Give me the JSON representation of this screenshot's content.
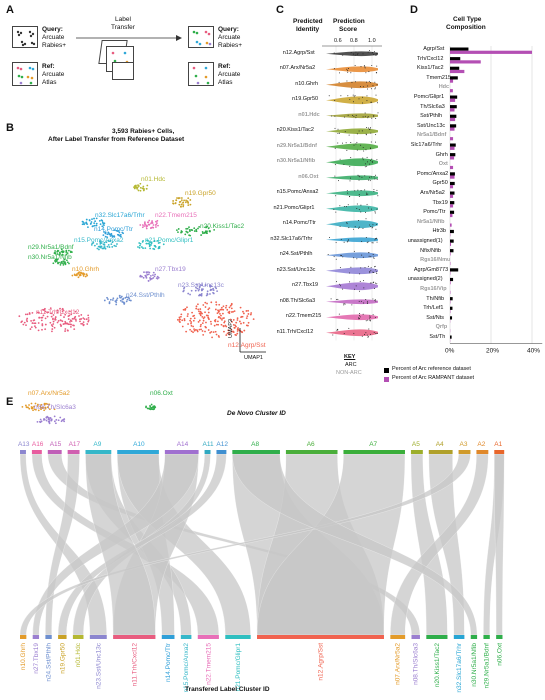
{
  "panels": {
    "A": "A",
    "B": "B",
    "C": "C",
    "D": "D",
    "E": "E"
  },
  "panelA": {
    "query_label": "Query:",
    "query_text": [
      "Arcuate",
      "Rabies+"
    ],
    "ref_label": "Ref:",
    "ref_text": [
      "Arcuate",
      "Atlas"
    ],
    "transfer_label": [
      "Label",
      "Transfer"
    ]
  },
  "panelB": {
    "title_line1": "3,593 Rabies+ Cells,",
    "title_line2": "After Label Transfer from Reference Dataset",
    "umap1": "UMAP1",
    "umap2": "UMAP2",
    "clusters": [
      {
        "label": "n01.Hdc",
        "color": "#b5b832"
      },
      {
        "label": "n19.Gpr50",
        "color": "#c9a227"
      },
      {
        "label": "n32.Slc17a6/Trhr",
        "color": "#27a5d4"
      },
      {
        "label": "n22.Tmem215",
        "color": "#e86fb8"
      },
      {
        "label": "n14.Pomc/Ttr",
        "color": "#2f9fd8"
      },
      {
        "label": "n20.Kiss1/Tac2",
        "color": "#2fae4a"
      },
      {
        "label": "n29.Nr5a1/Bdnf",
        "color": "#2fb04a"
      },
      {
        "label": "n15.Pomc/Anxa2",
        "color": "#35b7c9"
      },
      {
        "label": "n21.Pomc/Glipr1",
        "color": "#2fbfc0"
      },
      {
        "label": "n30.Nr5a1/Nfib",
        "color": "#2fae4a"
      },
      {
        "label": "n10.Ghrh",
        "color": "#e39b2a"
      },
      {
        "label": "n27.Tbx19",
        "color": "#9b7fd0"
      },
      {
        "label": "n23.Sst/Unc13c",
        "color": "#8c86cf"
      },
      {
        "label": "n24.Sst/Pthlh",
        "color": "#6e8fcf"
      },
      {
        "label": "n11.Trh/Cxcl12",
        "color": "#e85c7f"
      },
      {
        "label": "n12.Agrp/Sst",
        "color": "#f0624f"
      },
      {
        "label": "n07.Arx/Nr5a2",
        "color": "#e39b2a"
      },
      {
        "label": "n06.Oxt",
        "color": "#2fae4a"
      },
      {
        "label": "n08.Th/Slc6a3",
        "color": "#9b7fd0"
      }
    ]
  },
  "panelC": {
    "header_identity": [
      "Predicted",
      "Identity"
    ],
    "header_score": [
      "Prediction",
      "Score"
    ],
    "axis_ticks": [
      "0.6",
      "0.8",
      "1.0"
    ],
    "key_title": "KEY",
    "key_arc": "ARC",
    "key_nonarc": "NON-ARC",
    "rows": [
      {
        "label": "n12.Agrp/Sst",
        "arc": true,
        "color": "#333333"
      },
      {
        "label": "n07.Arx/Nr5a2",
        "arc": true,
        "color": "#e8862a"
      },
      {
        "label": "n10.Ghrh",
        "arc": true,
        "color": "#d07a1e"
      },
      {
        "label": "n19.Gpr50",
        "arc": true,
        "color": "#c9a227"
      },
      {
        "label": "n01.Hdc",
        "arc": false,
        "color": "#9c9c2b"
      },
      {
        "label": "n20.Kiss1/Tac2",
        "arc": true,
        "color": "#8aa52a"
      },
      {
        "label": "n29.Nr5a1/Bdnf",
        "arc": false,
        "color": "#4aa83a"
      },
      {
        "label": "n30.Nr5a1/Nfib",
        "arc": false,
        "color": "#2fa64a"
      },
      {
        "label": "n06.Oxt",
        "arc": false,
        "color": "#2fa860"
      },
      {
        "label": "n15.Pomc/Anxa2",
        "arc": true,
        "color": "#2fae7a"
      },
      {
        "label": "n21.Pomc/Glipr1",
        "arc": true,
        "color": "#2fb0a0"
      },
      {
        "label": "n14.Pomc/Ttr",
        "arc": true,
        "color": "#2fa8c0"
      },
      {
        "label": "n32.Slc17a6/Trhr",
        "arc": true,
        "color": "#2f9fd0"
      },
      {
        "label": "n24.Sst/Pthlh",
        "arc": true,
        "color": "#5f8fd6"
      },
      {
        "label": "n23.Sst/Unc13c",
        "arc": true,
        "color": "#8a7fd6"
      },
      {
        "label": "n27.Tbx19",
        "arc": true,
        "color": "#a070d0"
      },
      {
        "label": "n08.Th/Slc6a3",
        "arc": true,
        "color": "#c060c0"
      },
      {
        "label": "n22.Tmem215",
        "arc": true,
        "color": "#e060a8"
      },
      {
        "label": "n11.Trh/Cxcl12",
        "arc": true,
        "color": "#e85c7f"
      }
    ]
  },
  "panelD": {
    "title": [
      "Cell Type",
      "Composition"
    ],
    "legend_ref": "Percent of Arc reference dataset",
    "legend_rampant": "Percent of Arc RAMPANT dataset",
    "ref_color": "#000000",
    "rampant_color": "#b44fb4",
    "axis_ticks": [
      "0%",
      "20%",
      "40%"
    ]
  },
  "chart_data": {
    "type": "bar",
    "title": "Cell Type Composition",
    "xlabel": "",
    "ylabel": "",
    "xlim": [
      0,
      45
    ],
    "categories": [
      "Agrp/Sst",
      "Trh/Cxcl12",
      "Kiss1/Tac2",
      "Tmem215",
      "Hdc",
      "Pomc/Glipr1",
      "Th/Slc6a3",
      "Sst/Pthlh",
      "Sst/Unc13c",
      "Nr5a1/Bdnf",
      "Slc17a6/Trhr",
      "Ghrh",
      "Oxt",
      "Pomc/Anxa2",
      "Gpr50",
      "Arx/Nr5a2",
      "Tbx19",
      "Pomc/Ttr",
      "Nr5a1/Nfib",
      "Htr3b",
      "unassigned(1)",
      "Nfix/Nfib",
      "Rgs16/Nmu",
      "Agrp/Gm8773",
      "unassigned(2)",
      "Rgs16/Vip",
      "Th/Nfib",
      "Trh/Lef1",
      "Sst/Nts",
      "Qrfp",
      "Sst/Th"
    ],
    "category_arc": [
      true,
      true,
      true,
      true,
      false,
      true,
      true,
      true,
      true,
      false,
      true,
      true,
      false,
      true,
      true,
      true,
      true,
      true,
      false,
      true,
      true,
      true,
      false,
      true,
      true,
      false,
      true,
      true,
      true,
      false,
      true
    ],
    "series": [
      {
        "name": "Percent of Arc reference dataset",
        "values": [
          9,
          5,
          4.5,
          3.8,
          0,
          3.5,
          3.3,
          3.1,
          3,
          0,
          2.8,
          2.6,
          0,
          2.4,
          2.3,
          2.2,
          2.1,
          2,
          0,
          1.9,
          1.8,
          1.7,
          0,
          4,
          1.5,
          0,
          1.3,
          1.2,
          1,
          0,
          0.8
        ]
      },
      {
        "name": "Percent of Arc RAMPANT dataset",
        "values": [
          40,
          15,
          7,
          1.5,
          1.4,
          2.5,
          2.2,
          2.5,
          2.2,
          1.5,
          2.2,
          2,
          1.5,
          2.2,
          1.5,
          1.5,
          1.5,
          1.2,
          0.8,
          0.2,
          0.5,
          0.3,
          0.2,
          0.2,
          0.3,
          0.2,
          0.2,
          0.2,
          0.1,
          0.1,
          0.1
        ]
      }
    ]
  },
  "panelE": {
    "top_title": "De Novo Cluster ID",
    "bottom_title": "Transfered Label Cluster ID",
    "top_clusters": [
      {
        "label": "A13",
        "color": "#8c86cf"
      },
      {
        "label": "A16",
        "color": "#e85c9f"
      },
      {
        "label": "A15",
        "color": "#c05fb8"
      },
      {
        "label": "A17",
        "color": "#d05fb0"
      },
      {
        "label": "A9",
        "color": "#35b7c9"
      },
      {
        "label": "A10",
        "color": "#2fa8d8"
      },
      {
        "label": "A14",
        "color": "#a070d0"
      },
      {
        "label": "A11",
        "color": "#2fa8c0"
      },
      {
        "label": "A12",
        "color": "#3f8fd0"
      },
      {
        "label": "A8",
        "color": "#2fae4a"
      },
      {
        "label": "A6",
        "color": "#4aae3a"
      },
      {
        "label": "A7",
        "color": "#3aae3a"
      },
      {
        "label": "A5",
        "color": "#9cae2a"
      },
      {
        "label": "A4",
        "color": "#b0a02a"
      },
      {
        "label": "A3",
        "color": "#d09a2a"
      },
      {
        "label": "A2",
        "color": "#e0882a"
      },
      {
        "label": "A1",
        "color": "#e8662a"
      }
    ],
    "bottom_clusters": [
      {
        "label": "n10.Ghrh",
        "color": "#e39b2a"
      },
      {
        "label": "n27.Tbx19",
        "color": "#9b7fd0"
      },
      {
        "label": "n24.Sst/Pthlh",
        "color": "#6e8fcf"
      },
      {
        "label": "n19.Gpr50",
        "color": "#c9a227"
      },
      {
        "label": "n01.Hdc",
        "color": "#b5b832"
      },
      {
        "label": "n23.Sst/Unc13c",
        "color": "#8c86cf"
      },
      {
        "label": "n11.Trh/Cxcl12",
        "color": "#e85c7f"
      },
      {
        "label": "n14.Pomc/Ttr",
        "color": "#2f9fd8"
      },
      {
        "label": "n15.Pomc/Anxa2",
        "color": "#35b7c9"
      },
      {
        "label": "n22.Tmem215",
        "color": "#e86fb8"
      },
      {
        "label": "n21.Pomc/Glipr1",
        "color": "#2fbfc0"
      },
      {
        "label": "n12.Agrp/Sst",
        "color": "#f0624f"
      },
      {
        "label": "n07.Arx/Nr5a2",
        "color": "#e39b2a"
      },
      {
        "label": "n08.Th/Slc6a3",
        "color": "#9b7fd0"
      },
      {
        "label": "n20.Kiss1/Tac2",
        "color": "#2fae4a"
      },
      {
        "label": "n32.Slc17a6/Trhr",
        "color": "#27a5d4"
      },
      {
        "label": "n30.Nr5a1/Nfib",
        "color": "#2fae4a"
      },
      {
        "label": "n29.Nr5a1/Bdnf",
        "color": "#2fb04a"
      },
      {
        "label": "n06.Oxt",
        "color": "#2fae4a"
      }
    ]
  }
}
